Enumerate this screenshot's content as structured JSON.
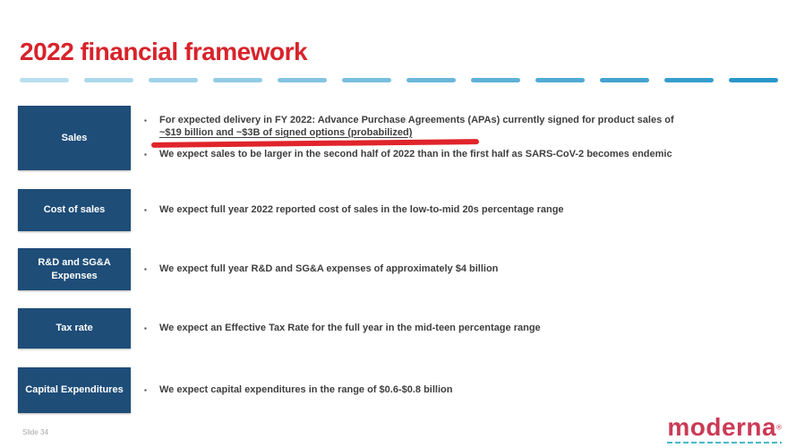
{
  "slide": {
    "title": "2022 financial framework",
    "slide_number": "Slide 34",
    "bullet_marker": "▪",
    "logo": {
      "text": "moderna",
      "mark": "®"
    },
    "colors": {
      "title_red": "#d8232b",
      "category_box_blue": "#1e4d78",
      "body_text_gray": "#3f3f3f",
      "annotation_red": "#e0242b",
      "divider_dash_start": "#b8dff0",
      "divider_dash_end": "#2a96c8",
      "logo_red": "#cb3a56",
      "logo_dash_teal": "#49b6c6"
    },
    "rows": [
      {
        "label": "Sales",
        "bullet1_lead": "For expected delivery in FY 2022: Advance Purchase Agreements (APAs) currently signed for product sales of",
        "bullet1_underlined": "~$19 billion and ~$3B of signed options (probabilized)",
        "bullet2": "We expect sales to be larger in the second half of 2022 than in the first half as SARS-CoV-2 becomes endemic"
      },
      {
        "label": "Cost of sales",
        "bullet": "We expect full year 2022 reported cost of sales in the low-to-mid 20s percentage range"
      },
      {
        "label": "R&D and SG&A Expenses",
        "bullet": "We expect full year R&D and SG&A expenses of approximately $4 billion"
      },
      {
        "label": "Tax rate",
        "bullet": "We expect an Effective Tax Rate for the full year in the mid-teen percentage range"
      },
      {
        "label": "Capital Expenditures",
        "bullet": "We expect capital expenditures in the range of $0.6-$0.8 billion"
      }
    ]
  }
}
